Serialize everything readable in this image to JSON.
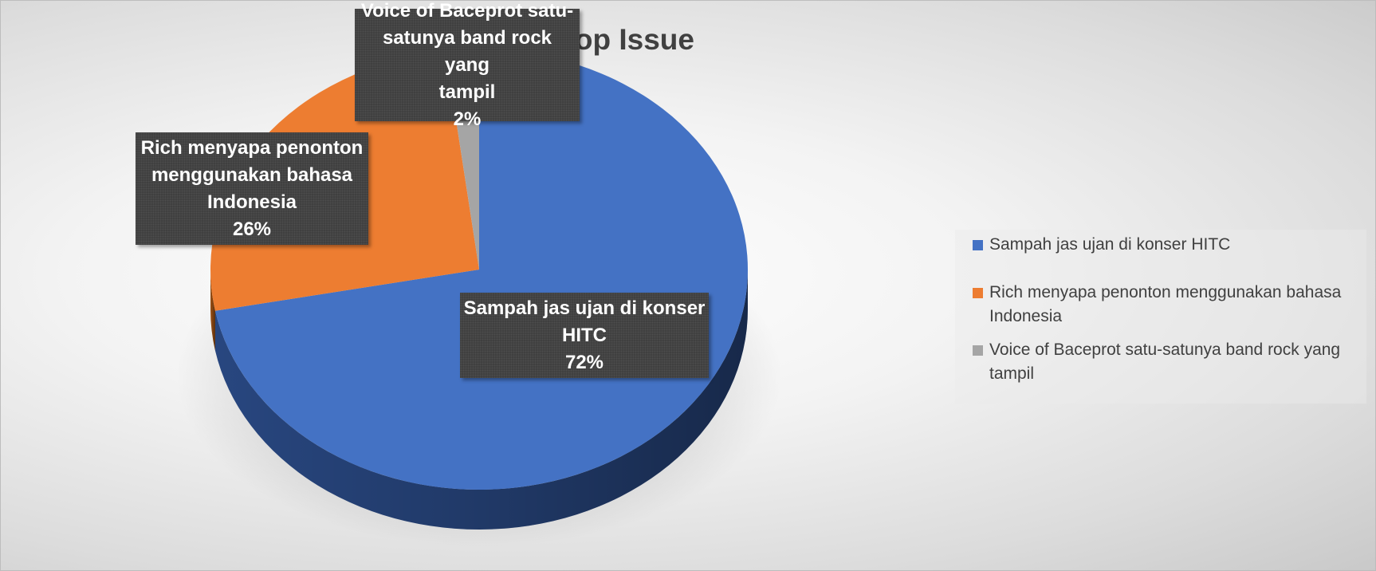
{
  "chart_data": {
    "type": "pie",
    "title": "Top Issue",
    "style": "3d",
    "slices": [
      {
        "label": "Sampah jas ujan di konser HITC",
        "value": 72,
        "value_text": "72%",
        "label_lines": [
          "Sampah jas ujan di konser",
          "HITC"
        ],
        "color": "#4472C4",
        "side_color": "#2A4A86"
      },
      {
        "label": "Rich menyapa penonton menggunakan bahasa Indonesia",
        "value": 26,
        "value_text": "26%",
        "label_lines": [
          "Rich menyapa penonton",
          "menggunakan bahasa",
          "Indonesia"
        ],
        "color": "#ED7D31",
        "side_color": "#A35416"
      },
      {
        "label": "Voice of Baceprot satu-satunya band rock yang tampil",
        "value": 2,
        "value_text": "2%",
        "label_lines": [
          "Voice of Baceprot satu-",
          "satunya band rock yang",
          "tampil"
        ],
        "color": "#A5A5A5",
        "side_color": "#6E6E6E"
      }
    ],
    "legend_position": "right",
    "data_labels": true
  }
}
